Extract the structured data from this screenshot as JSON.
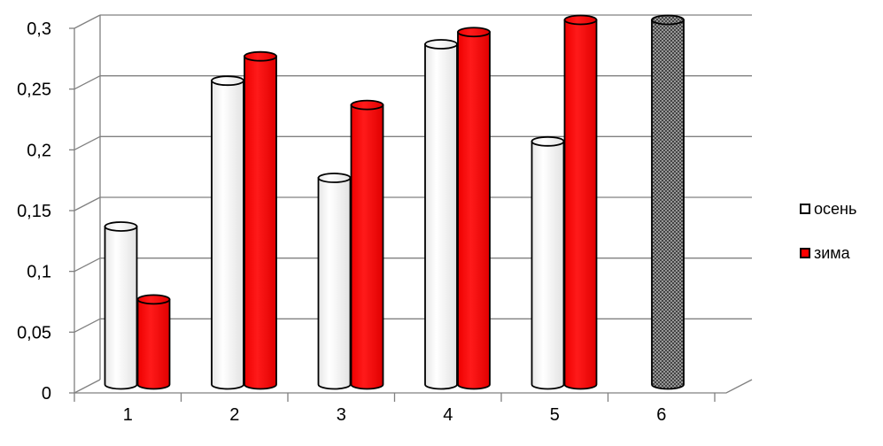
{
  "chart_data": {
    "type": "bar",
    "categories": [
      "1",
      "2",
      "3",
      "4",
      "5",
      "6"
    ],
    "series": [
      {
        "name": "осень",
        "values": [
          0.13,
          0.25,
          0.17,
          0.28,
          0.2,
          null
        ],
        "color": "#ffffff"
      },
      {
        "name": "зима",
        "values": [
          0.07,
          0.27,
          0.23,
          0.29,
          0.3,
          null
        ],
        "color": "#ff0000"
      }
    ],
    "extra_bar": {
      "category": "6",
      "value": 0.3,
      "color": "#999999",
      "pattern": "crosshatch"
    },
    "y_ticks": [
      "0",
      "0,05",
      "0,1",
      "0,15",
      "0,2",
      "0,25",
      "0,3"
    ],
    "ylim": [
      0,
      0.3
    ],
    "grid": true,
    "style": "3d-cylinder",
    "legend_position": "right",
    "title": "",
    "xlabel": "",
    "ylabel": ""
  }
}
